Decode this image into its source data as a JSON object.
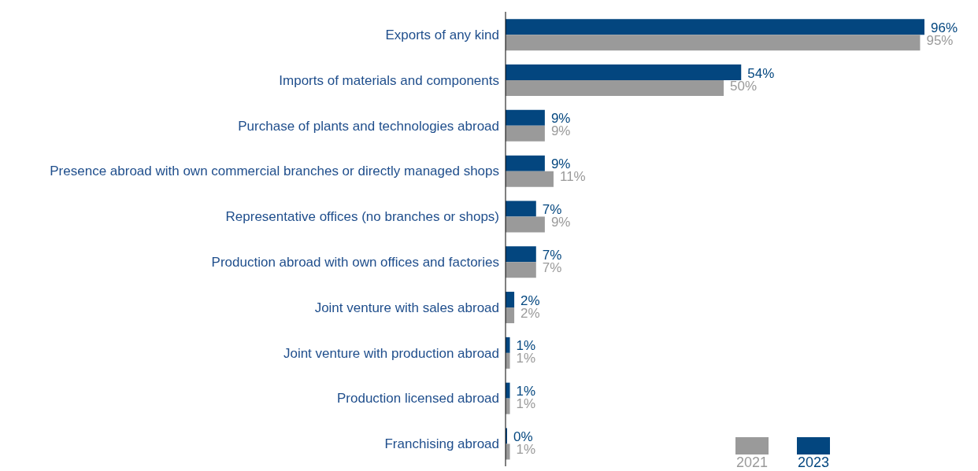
{
  "chart_data": {
    "type": "bar",
    "orientation": "horizontal",
    "legend": "bottom right",
    "categories": [
      "Exports of any kind",
      "Imports of materials and components",
      "Purchase of plants and technologies abroad",
      "Presence abroad with own commercial branches or directly managed shops",
      "Representative offices (no branches or shops)",
      "Production abroad with own offices and factories",
      "Joint venture with sales abroad",
      "Joint venture with production abroad",
      "Production licensed abroad",
      "Franchising abroad"
    ],
    "series": [
      {
        "name": "2023",
        "color": "#03467f",
        "values": [
          96,
          54,
          9,
          9,
          7,
          7,
          2,
          1,
          1,
          0
        ],
        "value_labels": [
          "96%",
          "54%",
          "9%",
          "9%",
          "7%",
          "7%",
          "2%",
          "1%",
          "1%",
          "0%"
        ]
      },
      {
        "name": "2021",
        "color": "#9a9a9a",
        "values": [
          95,
          50,
          9,
          11,
          9,
          7,
          2,
          1,
          1,
          1
        ],
        "value_labels": [
          "95%",
          "50%",
          "9%",
          "11%",
          "9%",
          "7%",
          "2%",
          "1%",
          "1%",
          "1%"
        ]
      }
    ]
  }
}
